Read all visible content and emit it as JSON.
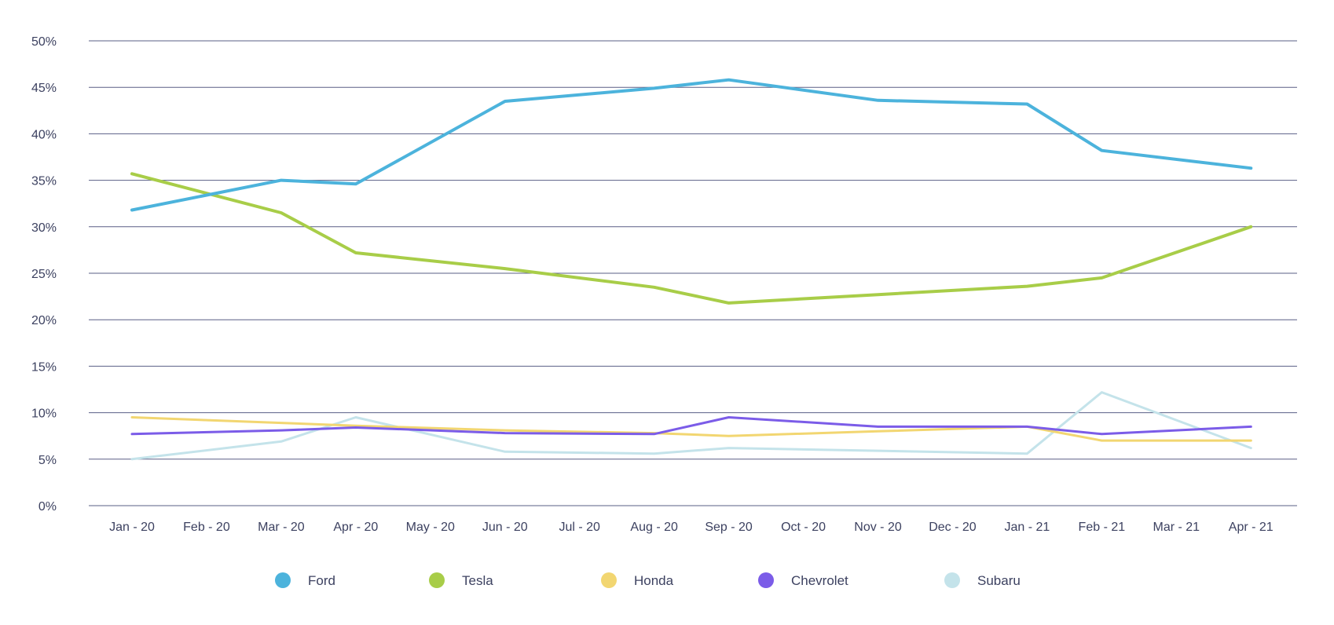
{
  "chart_data": {
    "type": "line",
    "title": "",
    "xlabel": "",
    "ylabel": "",
    "categories": [
      "Jan - 20",
      "Feb - 20",
      "Mar - 20",
      "Apr - 20",
      "May - 20",
      "Jun - 20",
      "Jul - 20",
      "Aug - 20",
      "Sep - 20",
      "Oct - 20",
      "Nov - 20",
      "Dec - 20",
      "Jan - 21",
      "Feb - 21",
      "Mar - 21",
      "Apr - 21"
    ],
    "y_ticks": [
      "0%",
      "5%",
      "10%",
      "15%",
      "20%",
      "25%",
      "30%",
      "35%",
      "40%",
      "45%",
      "50%"
    ],
    "ylim": [
      0,
      50
    ],
    "grid": true,
    "legend_position": "bottom",
    "series": [
      {
        "name": "Ford",
        "color": "#4cb3dc",
        "points": [
          [
            "Jan - 20",
            31.8
          ],
          [
            "Mar - 20",
            35.0
          ],
          [
            "Apr - 20",
            34.6
          ],
          [
            "Jun - 20",
            43.5
          ],
          [
            "Aug - 20",
            44.9
          ],
          [
            "Sep - 20",
            45.8
          ],
          [
            "Nov - 20",
            43.6
          ],
          [
            "Jan - 21",
            43.2
          ],
          [
            "Feb - 21",
            38.2
          ],
          [
            "Apr - 21",
            36.3
          ]
        ]
      },
      {
        "name": "Tesla",
        "color": "#a8cd48",
        "points": [
          [
            "Jan - 20",
            35.7
          ],
          [
            "Mar - 20",
            31.5
          ],
          [
            "Apr - 20",
            27.2
          ],
          [
            "Jun - 20",
            25.5
          ],
          [
            "Aug - 20",
            23.5
          ],
          [
            "Sep - 20",
            21.8
          ],
          [
            "Nov - 20",
            22.7
          ],
          [
            "Jan - 21",
            23.6
          ],
          [
            "Feb - 21",
            24.5
          ],
          [
            "Apr - 21",
            30.0
          ]
        ]
      },
      {
        "name": "Honda",
        "color": "#f2d671",
        "points": [
          [
            "Jan - 20",
            9.5
          ],
          [
            "Mar - 20",
            8.9
          ],
          [
            "Apr - 20",
            8.6
          ],
          [
            "Jun - 20",
            8.1
          ],
          [
            "Aug - 20",
            7.8
          ],
          [
            "Sep - 20",
            7.5
          ],
          [
            "Nov - 20",
            8.0
          ],
          [
            "Jan - 21",
            8.5
          ],
          [
            "Feb - 21",
            7.0
          ],
          [
            "Apr - 21",
            7.0
          ]
        ]
      },
      {
        "name": "Chevrolet",
        "color": "#7b5ce8",
        "points": [
          [
            "Jan - 20",
            7.7
          ],
          [
            "Mar - 20",
            8.1
          ],
          [
            "Apr - 20",
            8.4
          ],
          [
            "Jun - 20",
            7.8
          ],
          [
            "Aug - 20",
            7.7
          ],
          [
            "Sep - 20",
            9.5
          ],
          [
            "Nov - 20",
            8.5
          ],
          [
            "Jan - 21",
            8.5
          ],
          [
            "Feb - 21",
            7.7
          ],
          [
            "Apr - 21",
            8.5
          ]
        ]
      },
      {
        "name": "Subaru",
        "color": "#c4e3ea",
        "points": [
          [
            "Jan - 20",
            5.0
          ],
          [
            "Mar - 20",
            6.9
          ],
          [
            "Apr - 20",
            9.5
          ],
          [
            "Jun - 20",
            5.8
          ],
          [
            "Aug - 20",
            5.6
          ],
          [
            "Sep - 20",
            6.2
          ],
          [
            "Nov - 20",
            5.9
          ],
          [
            "Jan - 21",
            5.6
          ],
          [
            "Feb - 21",
            12.2
          ],
          [
            "Apr - 21",
            6.2
          ]
        ]
      }
    ]
  }
}
